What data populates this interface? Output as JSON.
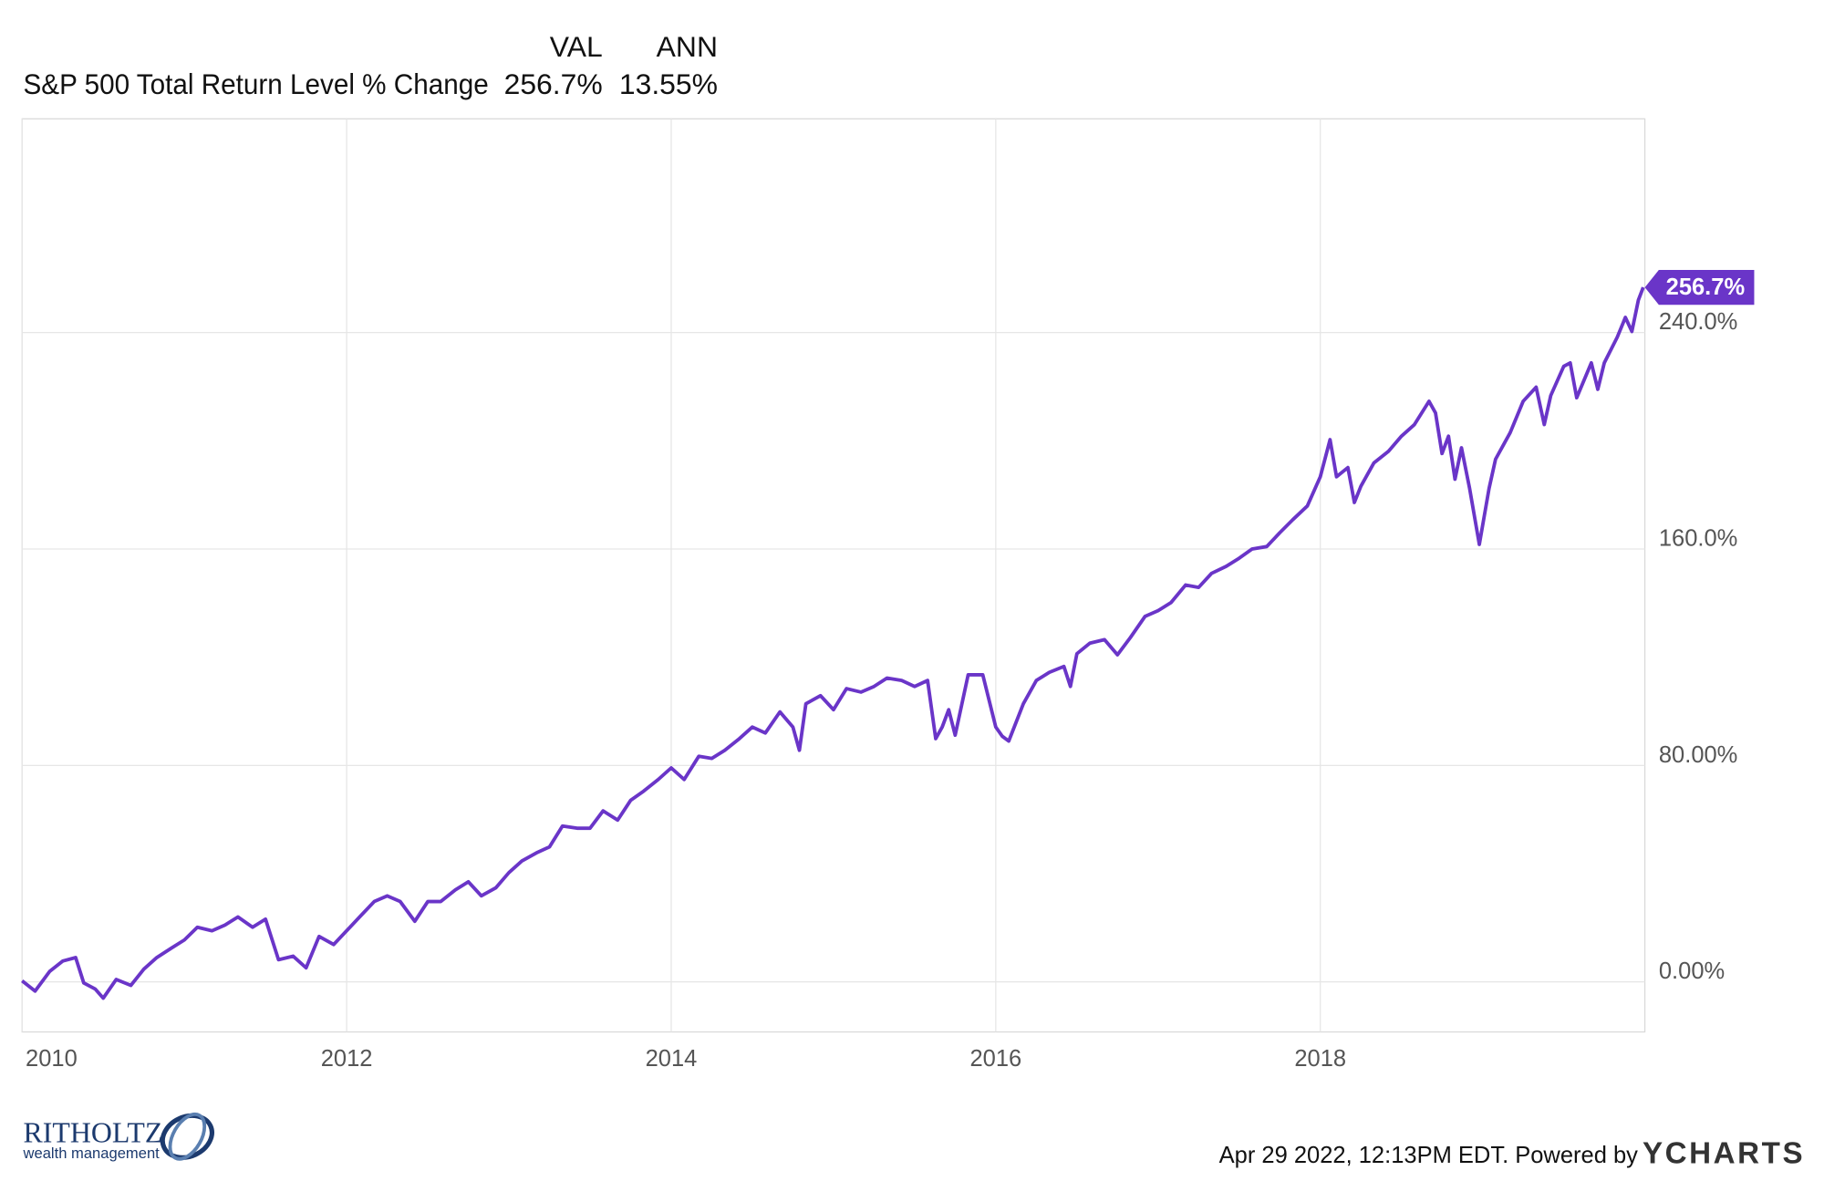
{
  "chart_data": {
    "type": "line",
    "legend_table": {
      "columns": [
        "VAL",
        "ANN"
      ],
      "rows": [
        [
          "S&P 500 Total Return Level % Change",
          "256.7%",
          "13.55%"
        ]
      ]
    },
    "x": [
      2010.0,
      2010.08,
      2010.17,
      2010.25,
      2010.33,
      2010.38,
      2010.45,
      2010.5,
      2010.58,
      2010.67,
      2010.75,
      2010.83,
      2010.92,
      2011.0,
      2011.08,
      2011.17,
      2011.25,
      2011.33,
      2011.42,
      2011.5,
      2011.58,
      2011.67,
      2011.75,
      2011.83,
      2011.92,
      2012.0,
      2012.08,
      2012.17,
      2012.25,
      2012.33,
      2012.42,
      2012.5,
      2012.58,
      2012.67,
      2012.75,
      2012.83,
      2012.92,
      2013.0,
      2013.08,
      2013.17,
      2013.25,
      2013.33,
      2013.42,
      2013.5,
      2013.58,
      2013.67,
      2013.75,
      2013.83,
      2013.92,
      2014.0,
      2014.08,
      2014.17,
      2014.25,
      2014.33,
      2014.42,
      2014.5,
      2014.58,
      2014.67,
      2014.75,
      2014.79,
      2014.83,
      2014.92,
      2015.0,
      2015.08,
      2015.17,
      2015.25,
      2015.33,
      2015.42,
      2015.5,
      2015.58,
      2015.63,
      2015.67,
      2015.71,
      2015.75,
      2015.83,
      2015.92,
      2016.0,
      2016.04,
      2016.08,
      2016.17,
      2016.25,
      2016.33,
      2016.42,
      2016.46,
      2016.5,
      2016.58,
      2016.67,
      2016.75,
      2016.83,
      2016.92,
      2017.0,
      2017.08,
      2017.17,
      2017.25,
      2017.33,
      2017.42,
      2017.5,
      2017.58,
      2017.67,
      2017.75,
      2017.83,
      2017.92,
      2018.0,
      2018.06,
      2018.1,
      2018.17,
      2018.21,
      2018.25,
      2018.33,
      2018.42,
      2018.5,
      2018.58,
      2018.67,
      2018.71,
      2018.75,
      2018.79,
      2018.83,
      2018.87,
      2018.92,
      2018.98,
      2019.04,
      2019.08,
      2019.17,
      2019.25,
      2019.33,
      2019.38,
      2019.42,
      2019.5,
      2019.54,
      2019.58,
      2019.67,
      2019.71,
      2019.75,
      2019.83,
      2019.88,
      2019.92,
      2019.96,
      2019.99
    ],
    "series": [
      {
        "name": "S&P 500 Total Return Level % Change",
        "color": "#6a35c8",
        "values": [
          0.4,
          -3.4,
          3.9,
          7.7,
          9,
          -0.4,
          -2.6,
          -6.0,
          0.9,
          -1.3,
          4.7,
          9,
          12.5,
          15.5,
          20.2,
          18.9,
          21,
          24,
          20.2,
          23.2,
          8.2,
          9.5,
          5.2,
          16.8,
          13.8,
          18.9,
          24,
          29.7,
          31.8,
          29.7,
          22.4,
          29.7,
          29.7,
          34,
          37,
          31.8,
          34.8,
          40.4,
          44.7,
          47.7,
          49.9,
          57.6,
          56.8,
          56.8,
          63.2,
          59.8,
          67.1,
          70.5,
          74.8,
          79.1,
          74.8,
          83.4,
          82.6,
          85.6,
          89.9,
          94.2,
          92,
          99.8,
          94.2,
          85.6,
          102.8,
          105.8,
          100.6,
          108.4,
          107.1,
          109.2,
          112.3,
          111.4,
          109.2,
          111.4,
          89.9,
          94.2,
          100.6,
          91.2,
          113.5,
          113.5,
          94.2,
          90.8,
          89,
          102.8,
          111.4,
          114.4,
          116.6,
          109.2,
          121.3,
          125.2,
          126.5,
          120.9,
          127.3,
          135.1,
          137.2,
          140.2,
          146.7,
          145.8,
          151,
          153.6,
          156.6,
          160,
          160.9,
          166,
          170.8,
          175.9,
          186.7,
          200.4,
          186.7,
          190.1,
          177.2,
          183.2,
          191.8,
          196.1,
          201.7,
          206,
          214.6,
          210.3,
          195.3,
          201.7,
          185.8,
          197.4,
          182.4,
          161.7,
          182.4,
          193.2,
          203,
          214.6,
          219.8,
          206,
          216.7,
          227.5,
          228.8,
          215.9,
          228.8,
          219,
          228.8,
          238.3,
          245.6,
          240.4,
          252,
          256.7
        ],
        "last_value_label": "256.7%"
      }
    ],
    "xlim": [
      2010,
      2020
    ],
    "xticks": [
      2010,
      2012,
      2014,
      2016,
      2018
    ],
    "ylim": [
      -18.5,
      319
    ],
    "yticks": [
      {
        "value": 0,
        "label": "0.00%"
      },
      {
        "value": 80,
        "label": "80.00%"
      },
      {
        "value": 160,
        "label": "160.0%"
      },
      {
        "value": 240,
        "label": "240.0%"
      }
    ],
    "grid": true,
    "footer": {
      "timestamp": "Apr 29 2022, 12:13PM EDT. Powered by",
      "brand": "YCHARTS"
    },
    "logo": {
      "name": "RITHOLTZ",
      "tagline": "wealth management"
    }
  }
}
